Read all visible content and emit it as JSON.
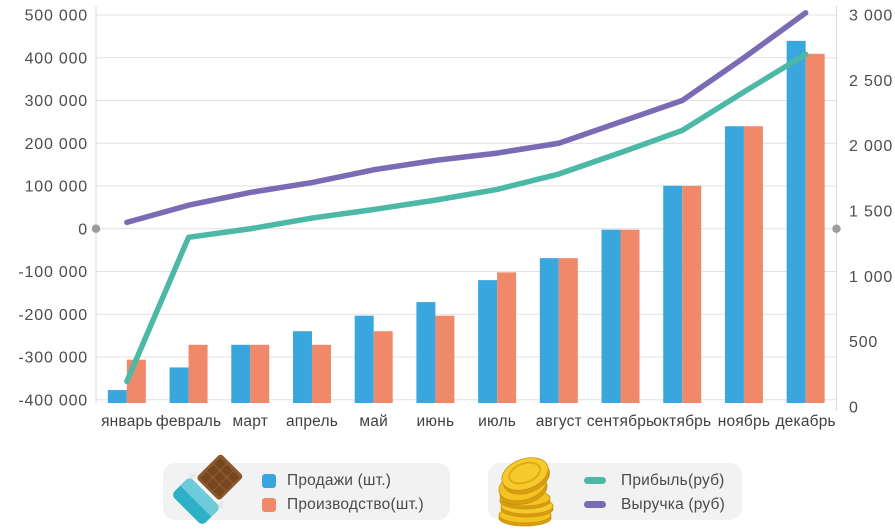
{
  "chart_data": {
    "type": "combo",
    "title": "",
    "categories": [
      "январь",
      "февраль",
      "март",
      "апрель",
      "май",
      "июнь",
      "июль",
      "август",
      "сентябрь",
      "октябрь",
      "ноябрь",
      "декабрь"
    ],
    "series": [
      {
        "name": "Продажи (шт.)",
        "type": "bar",
        "axis": "right",
        "color": "#3aa6de",
        "values": [
          100,
          275,
          450,
          555,
          675,
          780,
          950,
          1120,
          1340,
          1680,
          2140,
          2800
        ]
      },
      {
        "name": "Производство(шт.)",
        "type": "bar",
        "axis": "right",
        "color": "#f0886a",
        "values": [
          335,
          450,
          450,
          450,
          555,
          675,
          1010,
          1120,
          1340,
          1680,
          2140,
          2700
        ]
      },
      {
        "name": "Прибыль(руб)",
        "type": "line",
        "axis": "left",
        "color": "#4bb9a6",
        "values": [
          -357000,
          -20000,
          0,
          25000,
          45000,
          67000,
          92000,
          128000,
          178000,
          230000,
          320000,
          408000
        ]
      },
      {
        "name": "Выручка (руб)",
        "type": "line",
        "axis": "left",
        "color": "#7b6bb5",
        "values": [
          15000,
          55000,
          85000,
          108000,
          138000,
          160000,
          177000,
          200000,
          250000,
          300000,
          400000,
          505000
        ]
      }
    ],
    "left_axis": {
      "min": -400000,
      "max": 500000,
      "step": 100000,
      "tick_labels": [
        "500 000",
        "400 000",
        "300 000",
        "200 000",
        "100 000",
        "0",
        "-100 000",
        "-200 000",
        "-300 000",
        "-400 000"
      ]
    },
    "right_axis": {
      "min": 0,
      "max": 3000,
      "step": 500,
      "tick_labels": [
        "3 000",
        "2 500",
        "2 000",
        "1 500",
        "1 000",
        "500",
        "0"
      ]
    },
    "grid": "horizontal",
    "legend_position": "bottom"
  },
  "legend": {
    "units_box": {
      "icon": "chocolate-bar-icon"
    },
    "money_box": {
      "icon": "coins-icon"
    }
  },
  "colors": {
    "grid": "#e1e1e1",
    "axis_line": "#d9d9d9",
    "zero_dot": "#9c9c9c",
    "tick_text": "#4d4d4d",
    "month_text": "#3f3f3f",
    "legend_bg": "#f2f2f2"
  }
}
